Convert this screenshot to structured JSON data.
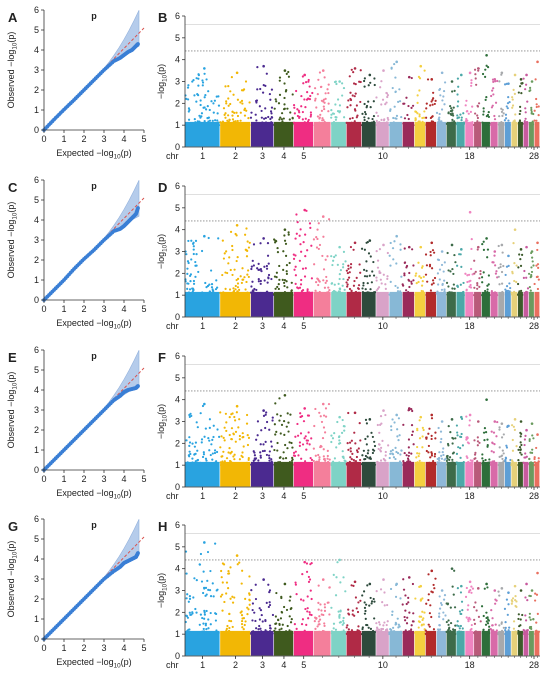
{
  "figure": {
    "panel_letters": [
      "A",
      "B",
      "C",
      "D",
      "E",
      "F",
      "G",
      "H"
    ]
  },
  "colors": {
    "qq_points": "#3a7fd5",
    "qq_band": "#a9c4e8",
    "qq_band_edge": "#7fa3d6",
    "expected_line": "#d9534f",
    "threshold_line": "#888888",
    "chromosomes": [
      "#29a3e0",
      "#f2b705",
      "#4b2a90",
      "#3f5a1e",
      "#ef2d82",
      "#f47f9b",
      "#7ed3c6",
      "#b02a46",
      "#2d4a3c",
      "#d9a3c8",
      "#87b8d6",
      "#9a2a5a",
      "#f4d03f",
      "#b22b2b",
      "#8fb8d8",
      "#3d6b49",
      "#4ba8a8",
      "#ef84c0",
      "#b95a7a",
      "#2d6e3a",
      "#d86aa8",
      "#a7a9ac",
      "#5e9fd6",
      "#e6d17a",
      "#3c5a2b",
      "#c85a9e",
      "#6a9b5e",
      "#e96f5f"
    ]
  },
  "qq_common": {
    "xlabel": "Expected −log10(p)",
    "ylabel": "Observed −log10(p)",
    "title": "p",
    "xticks": [
      "0",
      "1",
      "2",
      "3",
      "4",
      "5"
    ],
    "yticks": [
      "0",
      "1",
      "2",
      "3",
      "4",
      "5",
      "6"
    ]
  },
  "manhattan_common": {
    "ylabel": "−log10(p)",
    "yticks": [
      "0",
      "1",
      "2",
      "3",
      "4",
      "5",
      "6"
    ],
    "x_prefix": "chr",
    "x_labels": [
      "1",
      "2",
      "3",
      "4",
      "5",
      "10",
      "18",
      "28"
    ]
  },
  "chart_data": [
    {
      "panel": "A",
      "type": "scatter",
      "title": "p",
      "xlabel": "Expected −log10(p)",
      "ylabel": "Observed −log10(p)",
      "xlim": [
        0,
        5
      ],
      "ylim": [
        0,
        6
      ],
      "x": [
        0,
        0.5,
        1,
        1.5,
        2,
        2.5,
        3,
        3.5,
        3.8,
        4.0,
        4.2,
        4.4,
        4.6,
        4.7
      ],
      "y": [
        0,
        0.52,
        1.02,
        1.5,
        2.0,
        2.5,
        3.0,
        3.45,
        3.6,
        3.75,
        3.9,
        4.0,
        4.2,
        4.3
      ]
    },
    {
      "panel": "B",
      "type": "scatter",
      "subtype": "manhattan",
      "ylabel": "−log10(p)",
      "ylim": [
        0,
        6
      ],
      "threshold": 4.4,
      "x_labels": [
        "1",
        "2",
        "3",
        "4",
        "5",
        "10",
        "18",
        "28"
      ],
      "peak_per_chromosome": [
        3.6,
        3.4,
        3.7,
        3.5,
        3.3,
        3.5,
        3.0,
        3.6,
        3.3,
        3.5,
        3.9,
        3.2,
        3.7,
        3.1,
        3.4,
        3.0,
        3.3,
        3.4,
        3.6,
        4.2,
        3.1,
        3.4,
        2.9,
        3.3,
        3.1,
        3.3,
        3.0,
        3.9
      ]
    },
    {
      "panel": "C",
      "type": "scatter",
      "title": "p",
      "xlabel": "Expected −log10(p)",
      "ylabel": "Observed −log10(p)",
      "xlim": [
        0,
        5
      ],
      "ylim": [
        0,
        6
      ],
      "x": [
        0,
        0.5,
        1,
        1.5,
        2,
        2.5,
        3,
        3.5,
        3.8,
        4.0,
        4.2,
        4.4,
        4.6,
        4.7
      ],
      "y": [
        0,
        0.5,
        1.0,
        1.55,
        2.05,
        2.5,
        3.0,
        3.45,
        3.55,
        3.7,
        3.9,
        4.1,
        4.3,
        4.6
      ]
    },
    {
      "panel": "D",
      "type": "scatter",
      "subtype": "manhattan",
      "ylabel": "−log10(p)",
      "ylim": [
        0,
        6
      ],
      "threshold": 4.4,
      "x_labels": [
        "1",
        "2",
        "3",
        "4",
        "5",
        "10",
        "18",
        "28"
      ],
      "peak_per_chromosome": [
        3.7,
        4.2,
        3.6,
        4.0,
        4.9,
        4.6,
        3.2,
        3.4,
        3.5,
        3.3,
        3.7,
        3.2,
        3.2,
        3.4,
        3.0,
        3.3,
        3.1,
        4.8,
        3.2,
        3.6,
        3.0,
        3.3,
        2.8,
        4.0,
        3.1,
        3.2,
        3.0,
        3.4
      ]
    },
    {
      "panel": "E",
      "type": "scatter",
      "title": "p",
      "xlabel": "Expected −log10(p)",
      "ylabel": "Observed −log10(p)",
      "xlim": [
        0,
        5
      ],
      "ylim": [
        0,
        6
      ],
      "x": [
        0,
        0.5,
        1,
        1.5,
        2,
        2.5,
        3,
        3.5,
        3.8,
        4.0,
        4.2,
        4.4,
        4.6,
        4.7
      ],
      "y": [
        0,
        0.5,
        1.0,
        1.5,
        2.0,
        2.5,
        3.0,
        3.5,
        3.7,
        3.9,
        4.0,
        4.05,
        4.1,
        4.2
      ]
    },
    {
      "panel": "F",
      "type": "scatter",
      "subtype": "manhattan",
      "ylabel": "−log10(p)",
      "ylim": [
        0,
        6
      ],
      "threshold": 4.4,
      "x_labels": [
        "1",
        "2",
        "3",
        "4",
        "5",
        "10",
        "18",
        "28"
      ],
      "peak_per_chromosome": [
        3.8,
        3.7,
        3.5,
        4.2,
        3.6,
        3.8,
        3.2,
        3.4,
        3.1,
        3.5,
        3.3,
        3.6,
        3.2,
        3.3,
        3.0,
        3.1,
        3.2,
        3.3,
        3.0,
        4.0,
        3.0,
        2.9,
        2.8,
        3.1,
        3.0,
        2.6,
        2.9,
        2.4
      ]
    },
    {
      "panel": "G",
      "type": "scatter",
      "title": "p",
      "xlabel": "Expected −log10(p)",
      "ylabel": "Observed −log10(p)",
      "xlim": [
        0,
        5
      ],
      "ylim": [
        0,
        6
      ],
      "x": [
        0,
        0.5,
        1,
        1.5,
        2,
        2.5,
        3,
        3.5,
        3.8,
        4.0,
        4.2,
        4.4,
        4.6,
        4.7
      ],
      "y": [
        0,
        0.5,
        1.0,
        1.5,
        2.0,
        2.5,
        3.0,
        3.4,
        3.6,
        3.8,
        3.9,
        4.0,
        4.1,
        4.3
      ]
    },
    {
      "panel": "H",
      "type": "scatter",
      "subtype": "manhattan",
      "ylabel": "−log10(p)",
      "ylim": [
        0,
        6
      ],
      "threshold": 4.4,
      "x_labels": [
        "1",
        "2",
        "3",
        "4",
        "5",
        "10",
        "18",
        "28"
      ],
      "peak_per_chromosome": [
        5.2,
        4.6,
        3.5,
        3.3,
        4.3,
        3.5,
        4.4,
        3.4,
        3.3,
        3.5,
        3.3,
        3.6,
        3.2,
        3.9,
        3.0,
        4.0,
        3.2,
        3.4,
        3.1,
        3.3,
        3.0,
        3.1,
        2.9,
        3.2,
        3.0,
        3.3,
        3.0,
        3.8
      ]
    }
  ]
}
